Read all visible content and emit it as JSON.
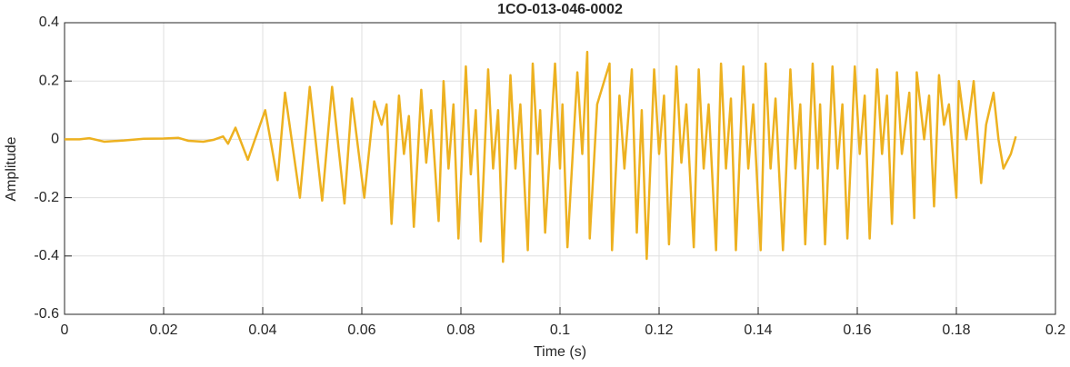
{
  "chart_data": {
    "type": "line",
    "title": "1CO-013-046-0002",
    "x_label": "Time (s)",
    "y_label": "Amplitude",
    "xlim": [
      0,
      0.2
    ],
    "xticks": [
      0,
      0.02,
      0.04,
      0.06,
      0.08,
      0.1,
      0.12,
      0.14,
      0.16,
      0.18,
      0.2
    ],
    "ylim": [
      -0.6,
      0.4
    ],
    "yticks": [
      -0.6,
      -0.4,
      -0.2,
      0,
      0.2,
      0.4
    ],
    "grid": true,
    "series": [
      {
        "color": "#EDB120",
        "x": [
          0,
          0.003,
          0.005,
          0.008,
          0.012,
          0.016,
          0.02,
          0.023,
          0.025,
          0.028,
          0.03,
          0.032,
          0.033,
          0.0345,
          0.037,
          0.0405,
          0.043,
          0.0445,
          0.0475,
          0.0495,
          0.052,
          0.054,
          0.0565,
          0.058,
          0.0605,
          0.0625,
          0.064,
          0.065,
          0.066,
          0.0675,
          0.0685,
          0.0695,
          0.0705,
          0.072,
          0.073,
          0.074,
          0.0755,
          0.0765,
          0.0775,
          0.0785,
          0.0795,
          0.081,
          0.082,
          0.083,
          0.084,
          0.0855,
          0.0865,
          0.0875,
          0.0885,
          0.09,
          0.091,
          0.092,
          0.0935,
          0.0945,
          0.0955,
          0.096,
          0.097,
          0.099,
          0.1,
          0.1005,
          0.1015,
          0.1035,
          0.1045,
          0.1055,
          0.106,
          0.1075,
          0.11,
          0.1105,
          0.112,
          0.113,
          0.1145,
          0.1155,
          0.1165,
          0.1175,
          0.119,
          0.12,
          0.121,
          0.122,
          0.1235,
          0.1245,
          0.1255,
          0.127,
          0.128,
          0.129,
          0.13,
          0.1315,
          0.1325,
          0.1335,
          0.1345,
          0.1355,
          0.137,
          0.138,
          0.139,
          0.1405,
          0.1415,
          0.1425,
          0.1435,
          0.145,
          0.1465,
          0.1475,
          0.1485,
          0.1495,
          0.151,
          0.152,
          0.1525,
          0.1535,
          0.155,
          0.156,
          0.157,
          0.158,
          0.1595,
          0.1605,
          0.1615,
          0.1625,
          0.164,
          0.165,
          0.166,
          0.167,
          0.168,
          0.169,
          0.1705,
          0.1715,
          0.172,
          0.1735,
          0.1745,
          0.1755,
          0.1765,
          0.1775,
          0.1785,
          0.18,
          0.1805,
          0.182,
          0.1835,
          0.185,
          0.186,
          0.1875,
          0.1885,
          0.1895,
          0.191,
          0.192
        ],
        "values": [
          0,
          0,
          0.004,
          -0.008,
          -0.004,
          0.002,
          0.003,
          0.005,
          -0.005,
          -0.008,
          -0.002,
          0.01,
          -0.015,
          0.04,
          -0.07,
          0.1,
          -0.14,
          0.16,
          -0.2,
          0.18,
          -0.21,
          0.18,
          -0.22,
          0.14,
          -0.2,
          0.13,
          0.05,
          0.12,
          -0.29,
          0.15,
          -0.05,
          0.08,
          -0.3,
          0.17,
          -0.08,
          0.1,
          -0.28,
          0.2,
          -0.1,
          0.12,
          -0.34,
          0.25,
          -0.12,
          0.1,
          -0.35,
          0.24,
          -0.1,
          0.1,
          -0.42,
          0.22,
          -0.1,
          0.12,
          -0.38,
          0.26,
          -0.05,
          0.1,
          -0.32,
          0.26,
          -0.1,
          0.12,
          -0.37,
          0.23,
          -0.05,
          0.3,
          -0.34,
          0.12,
          0.26,
          -0.38,
          0.15,
          -0.1,
          0.24,
          -0.32,
          0.1,
          -0.41,
          0.24,
          -0.05,
          0.15,
          -0.36,
          0.25,
          -0.08,
          0.12,
          -0.37,
          0.24,
          -0.1,
          0.12,
          -0.38,
          0.26,
          -0.1,
          0.14,
          -0.38,
          0.25,
          -0.1,
          0.12,
          -0.38,
          0.26,
          -0.1,
          0.14,
          -0.38,
          0.24,
          -0.1,
          0.12,
          -0.36,
          0.26,
          -0.1,
          0.12,
          -0.36,
          0.25,
          -0.1,
          0.12,
          -0.34,
          0.25,
          -0.05,
          0.15,
          -0.34,
          0.24,
          -0.05,
          0.15,
          -0.29,
          0.23,
          -0.05,
          0.16,
          -0.27,
          0.23,
          0,
          0.15,
          -0.23,
          0.22,
          0.05,
          0.12,
          -0.2,
          0.2,
          0,
          0.2,
          -0.15,
          0.05,
          0.16,
          0,
          -0.1,
          -0.05,
          0.01
        ]
      }
    ]
  }
}
